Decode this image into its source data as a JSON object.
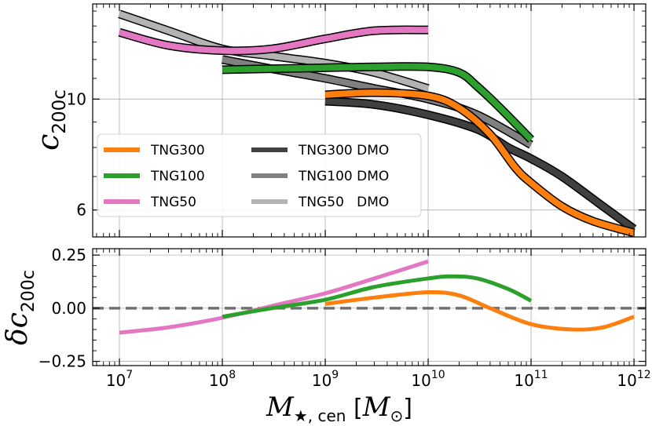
{
  "chart_data": [
    {
      "type": "line",
      "panel": "top",
      "ylabel_base": "c",
      "ylabel_sub": "200c",
      "xscale": "log",
      "yscale": "log",
      "xlim": [
        5500000.0,
        1300000000000.0
      ],
      "ylim": [
        5.3,
        15.5
      ],
      "grid": true,
      "yticks": [
        6,
        10
      ],
      "ytick_labels": [
        "6",
        "10"
      ],
      "legend": "lower-left",
      "series": [
        {
          "name": "TNG300",
          "color": "#ff7f0e",
          "outlined": true,
          "x": [
            1000000000.0,
            3000000000.0,
            10000000000.0,
            20000000000.0,
            40000000000.0,
            70000000000.0,
            100000000000.0,
            200000000000.0,
            400000000000.0,
            1000000000000.0
          ],
          "y": [
            10.2,
            10.3,
            10.15,
            9.6,
            8.5,
            7.3,
            6.8,
            6.1,
            5.7,
            5.4
          ]
        },
        {
          "name": "TNG100",
          "color": "#2ca02c",
          "outlined": true,
          "x": [
            100000000.0,
            300000000.0,
            1000000000.0,
            3000000000.0,
            10000000000.0,
            20000000000.0,
            30000000000.0,
            50000000000.0,
            100000000000.0
          ],
          "y": [
            11.45,
            11.5,
            11.55,
            11.6,
            11.6,
            11.3,
            10.6,
            9.6,
            8.3
          ]
        },
        {
          "name": "TNG50",
          "color": "#e377c2",
          "outlined": true,
          "x": [
            10000000.0,
            30000000.0,
            100000000.0,
            300000000.0,
            1000000000.0,
            3000000000.0,
            10000000000.0
          ],
          "y": [
            13.6,
            12.8,
            12.5,
            12.6,
            13.2,
            13.7,
            13.75
          ]
        },
        {
          "name": "TNG300 DMO",
          "color": "#404040",
          "outlined": true,
          "x": [
            1000000000.0,
            3000000000.0,
            10000000000.0,
            30000000000.0,
            60000000000.0,
            100000000000.0,
            200000000000.0,
            500000000000.0,
            1000000000000.0
          ],
          "y": [
            9.9,
            9.75,
            9.3,
            8.7,
            8.0,
            7.6,
            7.0,
            6.1,
            5.5
          ]
        },
        {
          "name": "TNG100 DMO",
          "color": "#808080",
          "outlined": true,
          "x": [
            100000000.0,
            300000000.0,
            1000000000.0,
            3000000000.0,
            10000000000.0,
            30000000000.0,
            100000000000.0
          ],
          "y": [
            12.0,
            11.5,
            11.0,
            10.5,
            10.0,
            9.3,
            8.1
          ]
        },
        {
          "name": "TNG50 DMO",
          "color": "#b3b3b3",
          "outlined": true,
          "x": [
            10000000.0,
            30000000.0,
            100000000.0,
            300000000.0,
            1000000000.0,
            3000000000.0,
            10000000000.0
          ],
          "y": [
            14.8,
            13.7,
            12.6,
            12.2,
            11.8,
            11.3,
            10.5
          ]
        }
      ],
      "legend_entries": [
        {
          "label": "TNG300",
          "color": "#ff7f0e"
        },
        {
          "label": "TNG100",
          "color": "#2ca02c"
        },
        {
          "label": "TNG50",
          "color": "#e377c2"
        },
        {
          "label": "TNG300 DMO",
          "color": "#404040"
        },
        {
          "label": "TNG100 DMO",
          "color": "#808080"
        },
        {
          "label": "TNG50   DMO",
          "color": "#b3b3b3"
        }
      ]
    },
    {
      "type": "line",
      "panel": "bottom",
      "ylabel_base": "δc",
      "ylabel_sub": "200c",
      "xscale": "log",
      "xlim": [
        5500000.0,
        1300000000000.0
      ],
      "ylim": [
        -0.27,
        0.28
      ],
      "grid": true,
      "yticks": [
        -0.25,
        0.0,
        0.25
      ],
      "ytick_labels": [
        "−0.25",
        "0.00",
        "0.25"
      ],
      "reference_line": {
        "y": 0.0,
        "style": "dashed",
        "color": "#707070"
      },
      "series": [
        {
          "name": "TNG300",
          "color": "#ff7f0e",
          "x": [
            1000000000.0,
            3000000000.0,
            10000000000.0,
            20000000000.0,
            40000000000.0,
            100000000000.0,
            250000000000.0,
            500000000000.0,
            1000000000000.0
          ],
          "y": [
            0.02,
            0.05,
            0.075,
            0.06,
            0.0,
            -0.075,
            -0.1,
            -0.09,
            -0.04
          ]
        },
        {
          "name": "TNG100",
          "color": "#2ca02c",
          "x": [
            100000000.0,
            300000000.0,
            1000000000.0,
            3000000000.0,
            10000000000.0,
            17000000000.0,
            30000000000.0,
            60000000000.0,
            100000000000.0
          ],
          "y": [
            -0.04,
            0.0,
            0.04,
            0.1,
            0.14,
            0.15,
            0.14,
            0.09,
            0.035
          ]
        },
        {
          "name": "TNG50",
          "color": "#e377c2",
          "x": [
            10000000.0,
            30000000.0,
            100000000.0,
            300000000.0,
            1000000000.0,
            3000000000.0,
            10000000000.0
          ],
          "y": [
            -0.115,
            -0.09,
            -0.045,
            0.01,
            0.07,
            0.14,
            0.22
          ]
        }
      ]
    }
  ],
  "xaxis": {
    "label_main": "M",
    "label_sub": "★, cen",
    "label_unit_open": " [",
    "label_unit": "M",
    "label_unit_sub": "⊙",
    "label_unit_close": "]",
    "ticks": [
      10000000.0,
      100000000.0,
      1000000000.0,
      10000000000.0,
      100000000000.0,
      1000000000000.0
    ],
    "tick_base": "10",
    "tick_exponents": [
      "7",
      "8",
      "9",
      "10",
      "11",
      "12"
    ]
  }
}
